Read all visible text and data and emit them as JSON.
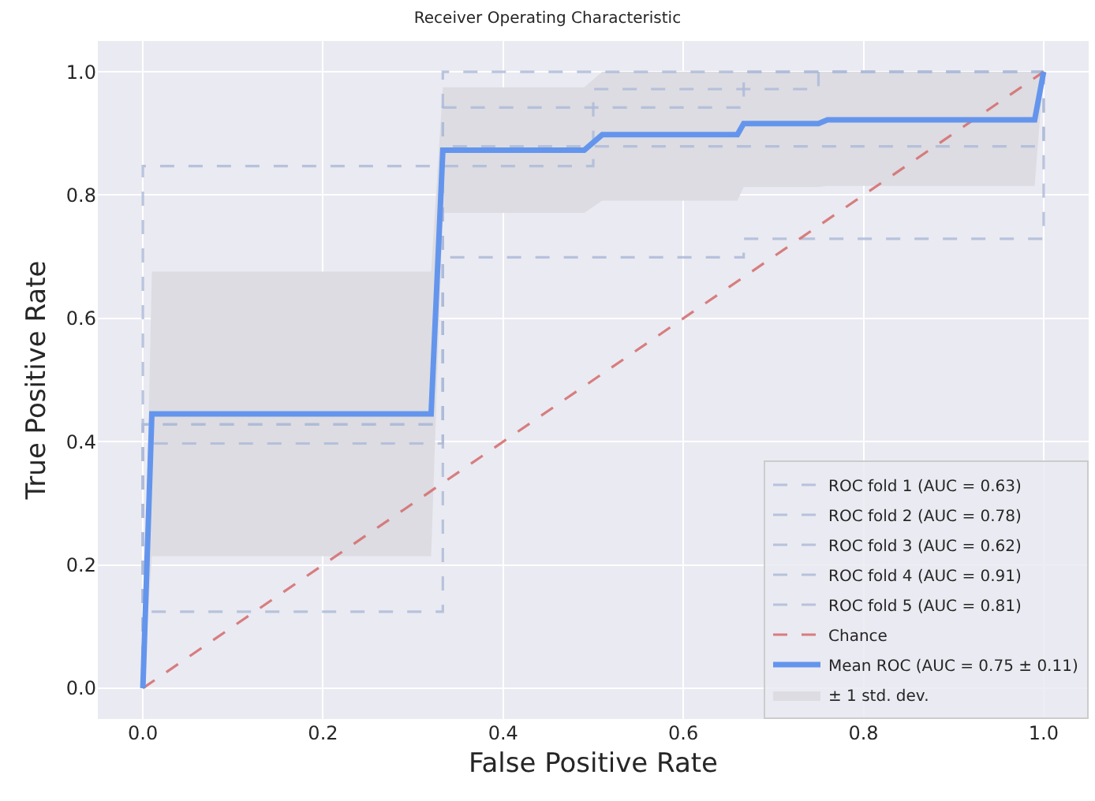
{
  "chart_data": {
    "type": "line",
    "title": "Receiver Operating Characteristic",
    "xlabel": "False Positive Rate",
    "ylabel": "True Positive Rate",
    "xlim": [
      -0.05,
      1.05
    ],
    "ylim": [
      -0.05,
      1.05
    ],
    "xticks": [
      {
        "value": 0,
        "label": "0.0"
      },
      {
        "value": 0.2,
        "label": "0.2"
      },
      {
        "value": 0.4,
        "label": "0.4"
      },
      {
        "value": 0.6,
        "label": "0.6"
      },
      {
        "value": 0.8,
        "label": "0.8"
      },
      {
        "value": 1,
        "label": "1.0"
      }
    ],
    "yticks": [
      {
        "value": 0,
        "label": "0.0"
      },
      {
        "value": 0.2,
        "label": "0.2"
      },
      {
        "value": 0.4,
        "label": "0.4"
      },
      {
        "value": 0.6,
        "label": "0.6"
      },
      {
        "value": 0.8,
        "label": "0.8"
      },
      {
        "value": 1,
        "label": "1.0"
      }
    ],
    "grid": true,
    "annotations": [
      "± 1 std. dev."
    ],
    "legend": "bottom right",
    "marker": "none",
    "series": [
      {
        "name": "ROC fold 1 (AUC = 0.63)",
        "color": "#aebbd8",
        "line_style": "dashed",
        "x": [
          0,
          0,
          0.333,
          0.333,
          1,
          1
        ],
        "values": [
          0,
          0.124,
          0.124,
          0.879,
          0.879,
          1
        ]
      },
      {
        "name": "ROC fold 2 (AUC = 0.78)",
        "color": "#aebbd8",
        "line_style": "dashed",
        "x": [
          0,
          0,
          0.333,
          0.333,
          0.667,
          0.667,
          1
        ],
        "values": [
          0,
          0.397,
          0.397,
          0.942,
          0.942,
          1,
          1
        ]
      },
      {
        "name": "ROC fold 3 (AUC = 0.62)",
        "color": "#aebbd8",
        "line_style": "dashed",
        "x": [
          0,
          0,
          0.333,
          0.333,
          0.667,
          0.667,
          1,
          1
        ],
        "values": [
          0,
          0.428,
          0.428,
          0.699,
          0.699,
          0.729,
          0.729,
          1
        ]
      },
      {
        "name": "ROC fold 4 (AUC = 0.91)",
        "color": "#aebbd8",
        "line_style": "dashed",
        "x": [
          0,
          0,
          0.5,
          0.5,
          0.75,
          0.75,
          1
        ],
        "values": [
          0,
          0.847,
          0.847,
          0.972,
          0.972,
          1,
          1
        ]
      },
      {
        "name": "ROC fold 5 (AUC = 0.81)",
        "color": "#aebbd8",
        "line_style": "dashed",
        "x": [
          0,
          0,
          0.333,
          0.333,
          1
        ],
        "values": [
          0,
          0.428,
          0.428,
          1,
          1
        ]
      },
      {
        "name": "Chance",
        "color": "#d46a6a",
        "line_style": "dashed",
        "x": [
          0,
          1
        ],
        "values": [
          0,
          1
        ]
      },
      {
        "name": "Mean ROC (AUC = 0.75 ± 0.11)",
        "color": "#6495ed",
        "line_style": "solid",
        "x": [
          0,
          0.01,
          0.32,
          0.333,
          0.49,
          0.51,
          0.66,
          0.667,
          0.75,
          0.76,
          0.99,
          1
        ],
        "values": [
          0,
          0.445,
          0.445,
          0.873,
          0.873,
          0.898,
          0.898,
          0.916,
          0.916,
          0.922,
          0.922,
          1
        ],
        "lower": [
          0,
          0.214,
          0.214,
          0.771,
          0.771,
          0.791,
          0.791,
          0.813,
          0.813,
          0.815,
          0.815,
          1
        ],
        "upper": [
          0,
          0.676,
          0.676,
          0.975,
          0.975,
          1,
          1,
          1,
          1,
          1,
          1,
          1
        ]
      }
    ]
  }
}
